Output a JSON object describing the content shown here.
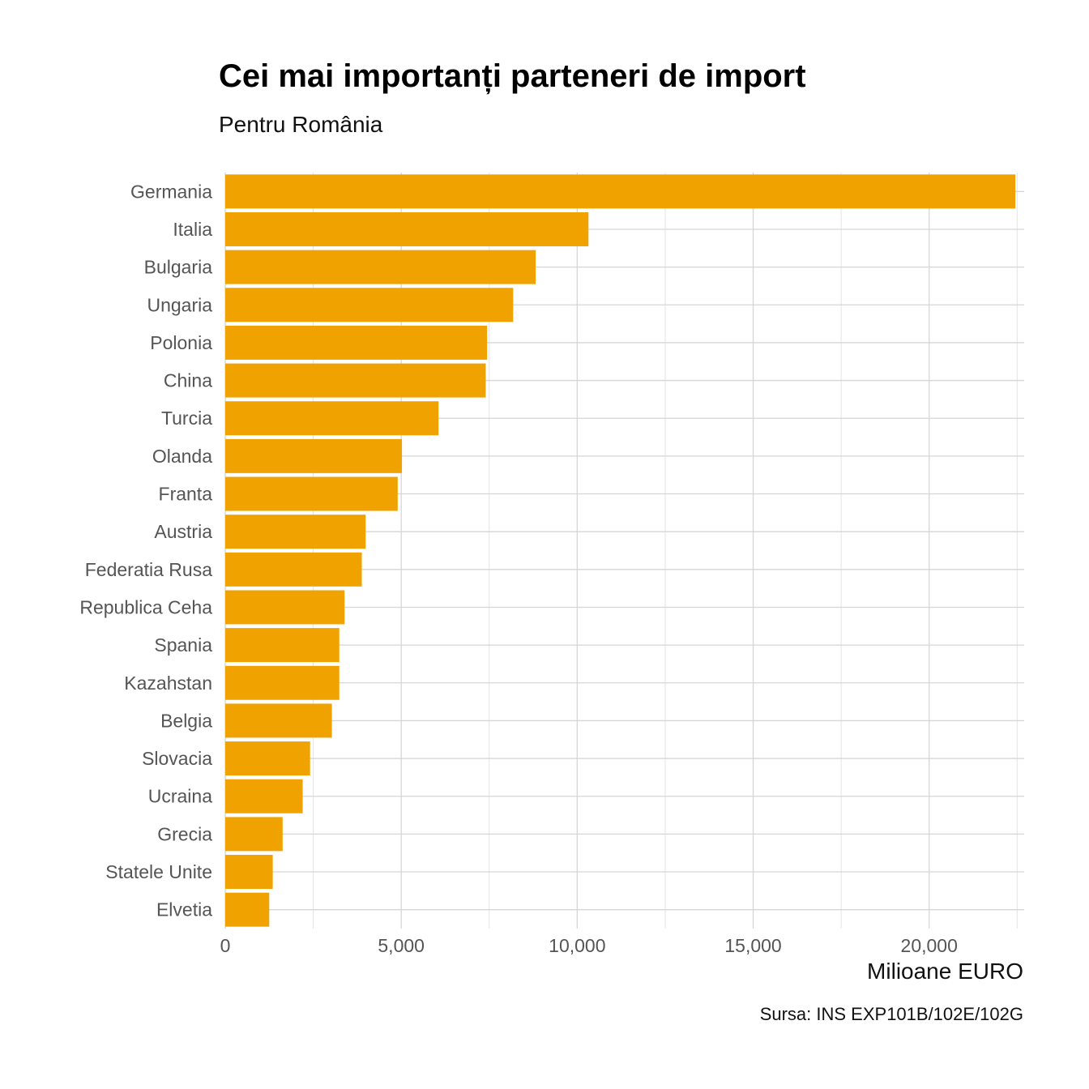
{
  "chart_data": {
    "type": "bar",
    "orientation": "horizontal",
    "title": "Cei mai importanți parteneri de import",
    "subtitle": "Pentru România",
    "xlabel": "Milioane EURO",
    "caption": "Sursa: INS EXP101B/102E/102G",
    "categories": [
      "Germania",
      "Italia",
      "Bulgaria",
      "Ungaria",
      "Polonia",
      "China",
      "Turcia",
      "Olanda",
      "Franta",
      "Austria",
      "Federatia Rusa",
      "Republica Ceha",
      "Spania",
      "Kazahstan",
      "Belgia",
      "Slovacia",
      "Ucraina",
      "Grecia",
      "Statele Unite",
      "Elvetia"
    ],
    "values": [
      22450,
      10320,
      8820,
      8180,
      7440,
      7400,
      6060,
      5020,
      4900,
      3990,
      3880,
      3390,
      3240,
      3240,
      3030,
      2410,
      2200,
      1630,
      1350,
      1250
    ],
    "xlim": [
      0,
      22700
    ],
    "xticks": [
      0,
      5000,
      10000,
      15000,
      20000
    ],
    "xtick_labels": [
      "0",
      "5,000",
      "10,000",
      "15,000",
      "20,000"
    ],
    "bar_color": "#f0a200",
    "grid": true
  }
}
